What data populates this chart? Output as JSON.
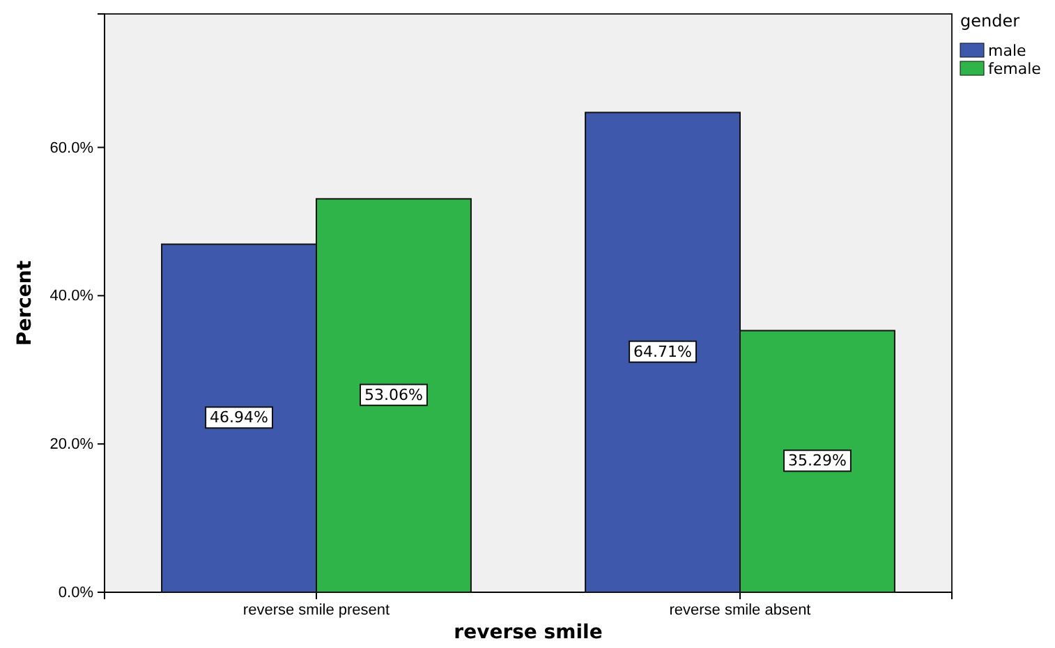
{
  "chart_data": {
    "type": "bar",
    "xlabel": "reverse smile",
    "ylabel": "Percent",
    "legend_title": "gender",
    "categories": [
      "reverse smile present",
      "reverse smile absent"
    ],
    "series": [
      {
        "name": "male",
        "color": "#3e58ac",
        "values": [
          46.94,
          64.71
        ],
        "value_labels": [
          "46.94%",
          "64.71%"
        ]
      },
      {
        "name": "female",
        "color": "#2fb449",
        "values": [
          53.06,
          35.29
        ],
        "value_labels": [
          "53.06%",
          "35.29%"
        ]
      }
    ],
    "ylim": [
      0,
      78
    ],
    "yticks": [
      {
        "value": 0,
        "label": "0.0%"
      },
      {
        "value": 20,
        "label": "20.0%"
      },
      {
        "value": 40,
        "label": "40.0%"
      },
      {
        "value": 60,
        "label": "60.0%"
      }
    ],
    "grid": false,
    "legend": "top right"
  }
}
